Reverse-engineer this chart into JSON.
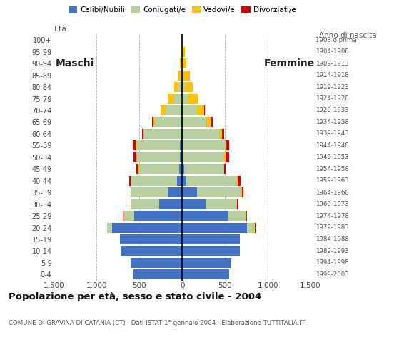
{
  "age_groups": [
    "0-4",
    "5-9",
    "10-14",
    "15-19",
    "20-24",
    "25-29",
    "30-34",
    "35-39",
    "40-44",
    "45-49",
    "50-54",
    "55-59",
    "60-64",
    "65-69",
    "70-74",
    "75-79",
    "80-84",
    "85-89",
    "90-94",
    "95-99",
    "100+"
  ],
  "birth_years": [
    "1999-2003",
    "1994-1998",
    "1989-1993",
    "1984-1988",
    "1979-1983",
    "1974-1978",
    "1969-1973",
    "1964-1968",
    "1959-1963",
    "1954-1958",
    "1949-1953",
    "1944-1948",
    "1939-1943",
    "1934-1938",
    "1929-1933",
    "1924-1928",
    "1919-1923",
    "1914-1918",
    "1909-1913",
    "1904-1908",
    "1903 o prima"
  ],
  "male_celibi": [
    570,
    600,
    720,
    730,
    820,
    560,
    270,
    170,
    60,
    35,
    30,
    25,
    20,
    15,
    10,
    0,
    0,
    0,
    0,
    0,
    0
  ],
  "male_coniugati": [
    0,
    0,
    0,
    0,
    55,
    120,
    320,
    420,
    530,
    470,
    500,
    510,
    420,
    300,
    190,
    95,
    45,
    18,
    5,
    0,
    0
  ],
  "male_vedovi": [
    0,
    0,
    0,
    0,
    0,
    5,
    5,
    5,
    5,
    5,
    5,
    5,
    10,
    20,
    40,
    75,
    50,
    30,
    18,
    5,
    0
  ],
  "male_divorziati": [
    0,
    0,
    0,
    0,
    0,
    5,
    10,
    10,
    20,
    25,
    30,
    35,
    22,
    18,
    8,
    0,
    0,
    0,
    0,
    0,
    0
  ],
  "female_celibi": [
    550,
    570,
    670,
    670,
    760,
    540,
    270,
    170,
    45,
    20,
    10,
    5,
    5,
    5,
    5,
    0,
    0,
    0,
    0,
    0,
    0
  ],
  "female_coniugati": [
    0,
    0,
    0,
    0,
    85,
    200,
    365,
    520,
    590,
    460,
    480,
    490,
    430,
    280,
    170,
    75,
    28,
    12,
    4,
    0,
    0
  ],
  "female_vedovi": [
    0,
    0,
    0,
    0,
    5,
    5,
    5,
    5,
    10,
    10,
    20,
    20,
    30,
    50,
    80,
    105,
    95,
    75,
    45,
    28,
    5
  ],
  "female_divorziati": [
    0,
    0,
    0,
    0,
    5,
    10,
    20,
    20,
    35,
    18,
    35,
    35,
    28,
    18,
    8,
    0,
    0,
    0,
    0,
    0,
    0
  ],
  "color_celibi": "#4472c4",
  "color_coniugati": "#b8cfa0",
  "color_vedovi": "#ffc000",
  "color_divorziati": "#cc0000",
  "title": "Popolazione per età, sesso e stato civile - 2004",
  "subtitle": "COMUNE DI GRAVINA DI CATANIA (CT) · Dati ISTAT 1° gennaio 2004 · Elaborazione TUTTITALIA.IT",
  "xlim": 1500,
  "bg_color": "#ffffff",
  "grid_color": "#999999",
  "bar_height": 0.85
}
